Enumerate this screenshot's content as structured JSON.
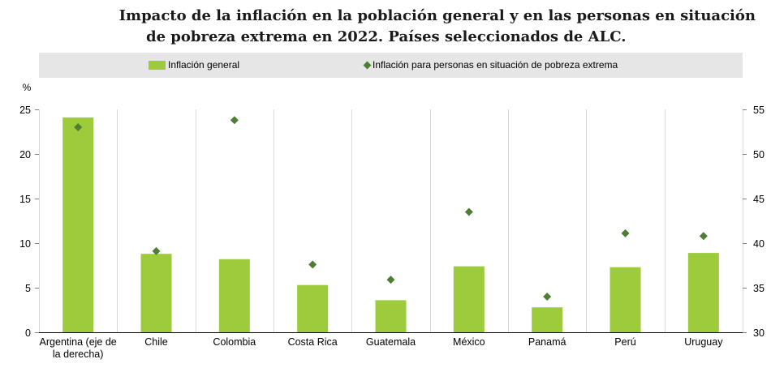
{
  "chart_data": {
    "type": "bar",
    "title_lines": [
      "Impacto de la inflación en la población general y en las personas en situación",
      "de pobreza extrema en 2022. Países seleccionados de ALC."
    ],
    "ylabel": "%",
    "categories": [
      "Argentina (eje de la derecha)",
      "Chile",
      "Colombia",
      "Costa Rica",
      "Guatemala",
      "México",
      "Panamá",
      "Perú",
      "Uruguay"
    ],
    "y2_categories": [
      "Argentina (eje de la derecha)"
    ],
    "series": [
      {
        "name": "Inflación general",
        "values": [
          54.1,
          8.8,
          8.2,
          5.3,
          3.6,
          7.4,
          2.8,
          7.3,
          8.9
        ],
        "color": "#9dcb3b"
      },
      {
        "name": "Inflación para personas en situación de pobreza extrema",
        "values": [
          53.0,
          9.1,
          23.8,
          7.6,
          5.9,
          13.5,
          4.0,
          11.1,
          10.8
        ],
        "color": "#4d7f32"
      }
    ],
    "ylim": [
      0,
      25
    ],
    "yticks": [
      0,
      5,
      10,
      15,
      20,
      25
    ],
    "y2lim": [
      30,
      55
    ],
    "y2ticks": [
      30,
      35,
      40,
      45,
      50,
      55
    ],
    "grid_x": true,
    "grid_y": false
  }
}
